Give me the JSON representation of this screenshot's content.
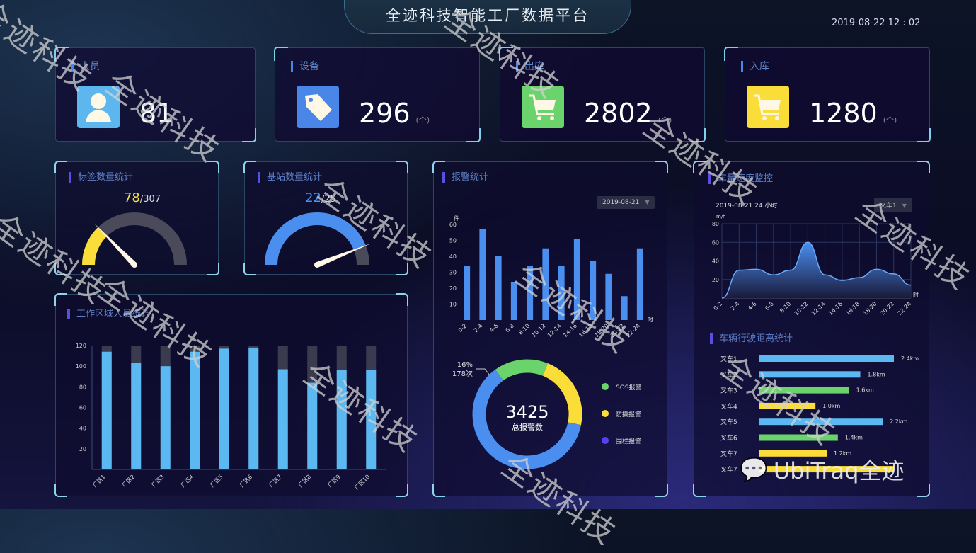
{
  "header": {
    "title": "全迹科技智能工厂数据平台",
    "datetime": "2019-08-22  12 : 02"
  },
  "cards": [
    {
      "label": "人员",
      "value": "81",
      "unit": "",
      "icon": "person-icon",
      "color": "#5db6ee"
    },
    {
      "label": "设备",
      "value": "296",
      "unit": "(个)",
      "icon": "tag-icon",
      "color": "#4a86e8"
    },
    {
      "label": "出库",
      "value": "2802",
      "unit": "(个)",
      "icon": "cart-icon",
      "color": "#6bd36b"
    },
    {
      "label": "入库",
      "value": "1280",
      "unit": "(个)",
      "icon": "cart-icon",
      "color": "#fbdd3a"
    }
  ],
  "gauges": [
    {
      "title": "标签数量统计",
      "value": 78,
      "total": 307,
      "value_text": "78",
      "total_text": "/307",
      "color": "#fbdd3a"
    },
    {
      "title": "基站数量统计",
      "value": 22,
      "total": 25,
      "value_text": "22",
      "total_text": "/25",
      "color": "#4a8ff0"
    }
  ],
  "chart_data": [
    {
      "type": "bar",
      "title": "工作区域人员统计",
      "categories": [
        "厂区1",
        "厂区2",
        "厂区3",
        "厂区4",
        "厂区5",
        "厂区6",
        "厂区7",
        "厂区8",
        "厂区9",
        "厂区10"
      ],
      "values": [
        114,
        103,
        100,
        114,
        117,
        118,
        97,
        84,
        96,
        96
      ],
      "max_background": 120,
      "ylim": [
        0,
        120
      ],
      "yticks": [
        20,
        40,
        60,
        80,
        100,
        120
      ],
      "color": "#5cb8f0"
    },
    {
      "type": "bar",
      "title": "报警统计",
      "ylabel": "件",
      "xlabel": "时",
      "date_select": "2019-08-21",
      "categories": [
        "0-2",
        "2-4",
        "4-6",
        "6-8",
        "8-10",
        "10-12",
        "12-14",
        "14-16",
        "16-18",
        "18-20",
        "20-22",
        "22-24"
      ],
      "values": [
        34,
        57,
        40,
        24,
        34,
        45,
        34,
        51,
        37,
        29,
        15,
        45
      ],
      "ylim": [
        0,
        60
      ],
      "yticks": [
        10,
        20,
        30,
        40,
        50,
        60
      ],
      "color": "#4a8ff0"
    },
    {
      "type": "pie",
      "center_value": "3425",
      "center_label": "总报警数",
      "annotation": {
        "percent": "16%",
        "count": "178次"
      },
      "slices": [
        {
          "name": "SOS报警",
          "value": 16,
          "color": "#6bd36b"
        },
        {
          "name": "防撬报警",
          "value": 22,
          "color": "#fbdd3a"
        },
        {
          "name": "围栏报警",
          "value": 62,
          "color": "#4a8ff0",
          "legend_color": "#5a3ff0"
        }
      ]
    },
    {
      "type": "area",
      "title": "车量速度监控",
      "subtitle": "2019-08-21   24 小时",
      "vehicle_select": "叉车1",
      "ylabel": "m/h",
      "xlabel": "时",
      "categories": [
        "0-2",
        "2-4",
        "4-6",
        "6-8",
        "8-10",
        "10-12",
        "12-14",
        "14-16",
        "16-18",
        "18-20",
        "20-22",
        "22-24"
      ],
      "values": [
        0,
        30,
        31,
        25,
        30,
        60,
        25,
        19,
        22,
        31,
        26,
        14
      ],
      "ylim": [
        0,
        80
      ],
      "yticks": [
        20,
        40,
        60,
        80
      ],
      "grid": true,
      "color": "#4a8ff0"
    },
    {
      "type": "bar",
      "orientation": "horizontal",
      "title": "车辆行驶距离统计",
      "categories": [
        "叉车1",
        "叉车2",
        "叉车3",
        "叉车4",
        "叉车5",
        "叉车6",
        "叉车7",
        "叉车7"
      ],
      "values": [
        2.4,
        1.8,
        1.6,
        1.0,
        2.2,
        1.4,
        1.2,
        2.4
      ],
      "labels": [
        "2.4km",
        "1.8km",
        "1.6km",
        "1.0km",
        "2.2km",
        "1.4km",
        "1.2km",
        ""
      ],
      "colors": [
        "#5cb8f0",
        "#5cb8f0",
        "#6bd36b",
        "#fbdd3a",
        "#5cb8f0",
        "#6bd36b",
        "#fbdd3a",
        "#fbdd3a"
      ]
    }
  ],
  "watermark": {
    "text": "全迹科技",
    "logo_text": "UbiTraq全迹"
  }
}
